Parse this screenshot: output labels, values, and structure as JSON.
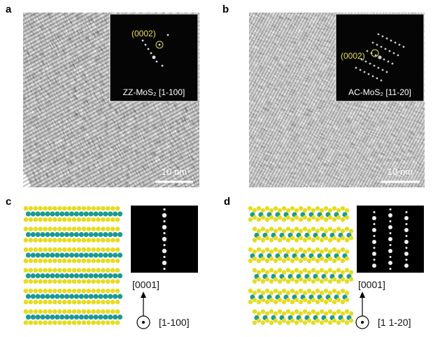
{
  "panels": [
    {
      "label": "a",
      "reflection": "(0002)",
      "zone": "ZZ-MoS₂ [1-100]",
      "scale": "10 nm"
    },
    {
      "label": "b",
      "reflection": "(0002)",
      "zone": "AC-MoS₂ [11-20]",
      "scale": "10 nm"
    },
    {
      "label": "c",
      "up": "[0001]",
      "out": "[1-100]"
    },
    {
      "label": "d",
      "up": "[0001]",
      "out": "[1 1-20]"
    }
  ]
}
